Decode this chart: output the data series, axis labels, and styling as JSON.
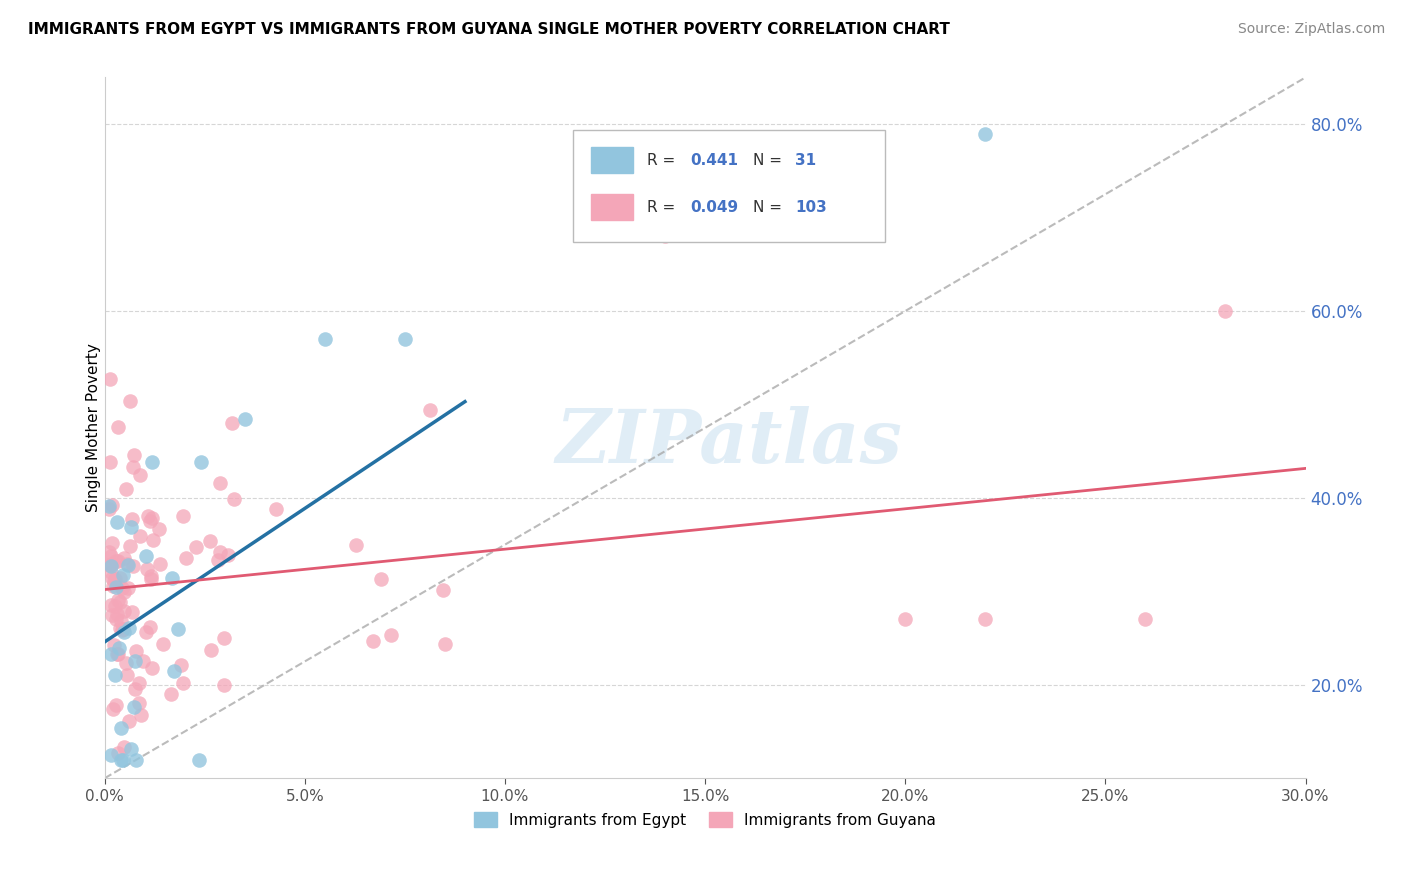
{
  "title": "IMMIGRANTS FROM EGYPT VS IMMIGRANTS FROM GUYANA SINGLE MOTHER POVERTY CORRELATION CHART",
  "source": "Source: ZipAtlas.com",
  "ylabel": "Single Mother Poverty",
  "xlim": [
    0.0,
    0.3
  ],
  "ylim": [
    0.1,
    0.85
  ],
  "xticks": [
    0.0,
    0.05,
    0.1,
    0.15,
    0.2,
    0.25,
    0.3
  ],
  "yticks": [
    0.2,
    0.4,
    0.6,
    0.8
  ],
  "watermark": "ZIPatlas",
  "legend_egypt": "Immigrants from Egypt",
  "legend_guyana": "Immigrants from Guyana",
  "R_egypt": 0.441,
  "N_egypt": 31,
  "R_guyana": 0.049,
  "N_guyana": 103,
  "color_egypt": "#92c5de",
  "color_guyana": "#f4a6b8",
  "color_egypt_line": "#2471a3",
  "color_guyana_line": "#e05a72",
  "color_diag": "#aaaaaa",
  "color_ytick": "#4472c4",
  "background": "#ffffff",
  "grid_color": "#cccccc"
}
